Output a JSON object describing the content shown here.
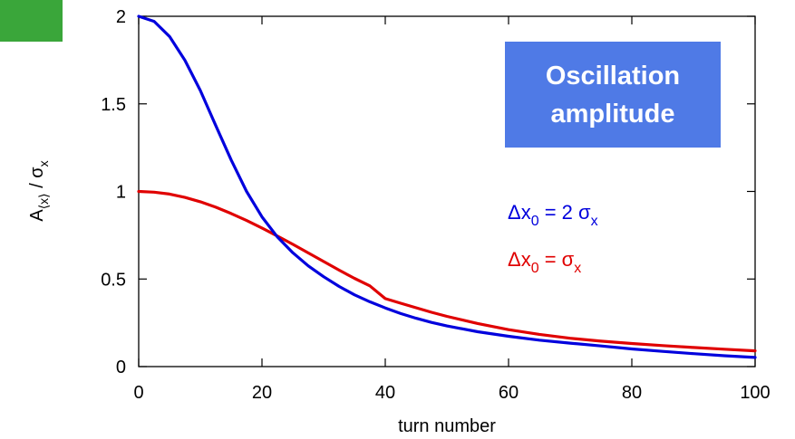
{
  "decoration": {
    "corner_tab_color": "#3aa63a"
  },
  "chart_data": {
    "type": "line",
    "title": "Oscillation amplitude",
    "title_box_color": "#4f7ae6",
    "xlabel": "turn number",
    "ylabel": "A⟨x⟩ / σx",
    "ylabel_parts": {
      "main": "A",
      "sub": "⟨x⟩",
      "mid": " / σ",
      "sub2": "x"
    },
    "xlim": [
      0,
      100
    ],
    "ylim": [
      0,
      2
    ],
    "xticks": [
      0,
      20,
      40,
      60,
      80,
      100
    ],
    "yticks": [
      0,
      0.5,
      1,
      1.5,
      2
    ],
    "xtick_labels": [
      "0",
      "20",
      "40",
      "60",
      "80",
      "100"
    ],
    "ytick_labels": [
      "0",
      "0.5",
      "1",
      "1.5",
      "2"
    ],
    "grid": false,
    "legend_position": "right",
    "series": [
      {
        "name": "Δx0 = 2 σx",
        "label_parts": {
          "a": "Δx",
          "sub_a": "0",
          "b": " = 2 σ",
          "sub_b": "x"
        },
        "color": "#0000dd",
        "x": [
          0,
          2.5,
          5,
          7.5,
          10,
          12.5,
          15,
          17.5,
          20,
          22.5,
          25,
          27.5,
          30,
          32.5,
          35,
          37.5,
          40,
          42.5,
          45,
          47.5,
          50,
          55,
          60,
          65,
          70,
          75,
          80,
          85,
          90,
          95,
          100
        ],
        "y": [
          2.0,
          1.971,
          1.885,
          1.749,
          1.576,
          1.376,
          1.18,
          1.0,
          0.855,
          0.74,
          0.65,
          0.575,
          0.513,
          0.458,
          0.41,
          0.37,
          0.335,
          0.303,
          0.276,
          0.252,
          0.232,
          0.199,
          0.173,
          0.151,
          0.134,
          0.118,
          0.101,
          0.087,
          0.074,
          0.062,
          0.052
        ]
      },
      {
        "name": "Δx0 = σx",
        "label_parts": {
          "a": "Δx",
          "sub_a": "0",
          "b": " = σ",
          "sub_b": "x"
        },
        "color": "#e00000",
        "x": [
          0,
          2.5,
          5,
          7.5,
          10,
          12.5,
          15,
          17.5,
          20,
          22.5,
          25,
          27.5,
          30,
          32.5,
          35,
          37.5,
          40,
          42.5,
          45,
          47.5,
          50,
          55,
          60,
          65,
          70,
          75,
          80,
          85,
          90,
          95,
          100
        ],
        "y": [
          1.0,
          0.996,
          0.985,
          0.966,
          0.941,
          0.91,
          0.874,
          0.834,
          0.791,
          0.745,
          0.698,
          0.649,
          0.6,
          0.551,
          0.504,
          0.461,
          0.388,
          0.362,
          0.336,
          0.31,
          0.287,
          0.246,
          0.211,
          0.184,
          0.162,
          0.145,
          0.132,
          0.12,
          0.109,
          0.099,
          0.09
        ]
      }
    ]
  }
}
